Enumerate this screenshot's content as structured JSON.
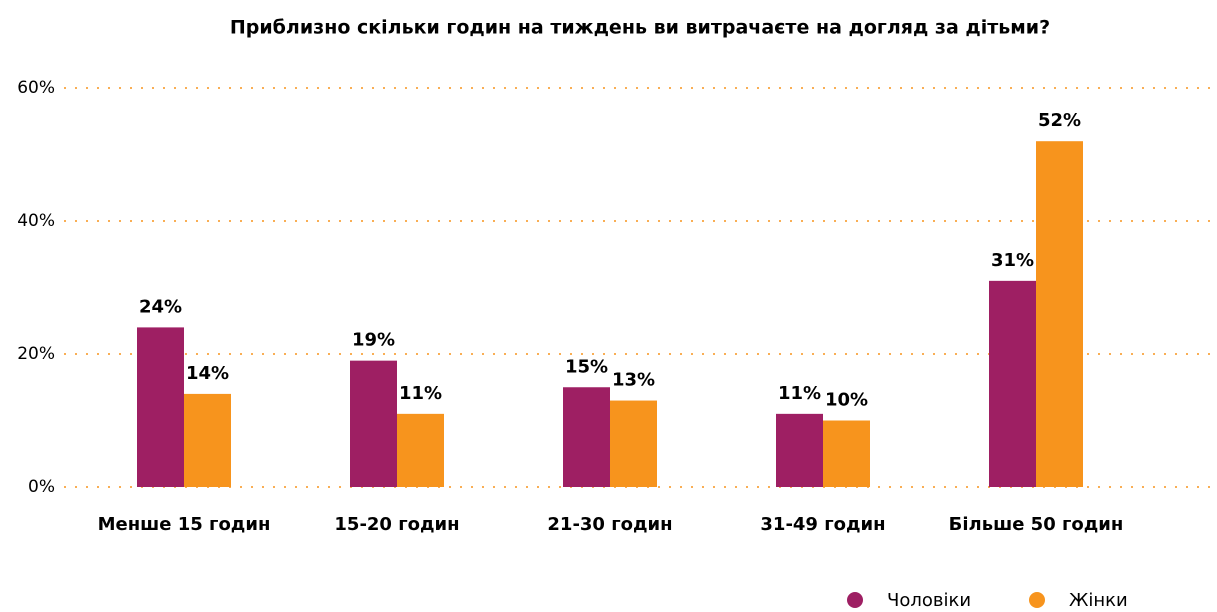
{
  "chart_data": {
    "type": "bar",
    "title": "Приблизно скільки годин на тиждень ви витрачаєте на догляд за дітьми?",
    "categories": [
      "Менше 15 годин",
      "15-20 годин",
      "21-30 годин",
      "31-49 годин",
      "Більше 50 годин"
    ],
    "series": [
      {
        "name": "Чоловіки",
        "color": "#9e1f63",
        "values": [
          24,
          19,
          15,
          11,
          31
        ],
        "value_labels": [
          "24%",
          "19%",
          "15%",
          "11%",
          "31%"
        ]
      },
      {
        "name": "Жінки",
        "color": "#f7941d",
        "values": [
          14,
          11,
          13,
          10,
          52
        ],
        "value_labels": [
          "14%",
          "11%",
          "13%",
          "10%",
          "52%"
        ]
      }
    ],
    "ylim": [
      0,
      60
    ],
    "yticks": [
      {
        "value": 0,
        "label": "0%"
      },
      {
        "value": 20,
        "label": "20%"
      },
      {
        "value": 40,
        "label": "40%"
      },
      {
        "value": 60,
        "label": "60%"
      }
    ],
    "grid": true,
    "legend": "bottom-right"
  }
}
